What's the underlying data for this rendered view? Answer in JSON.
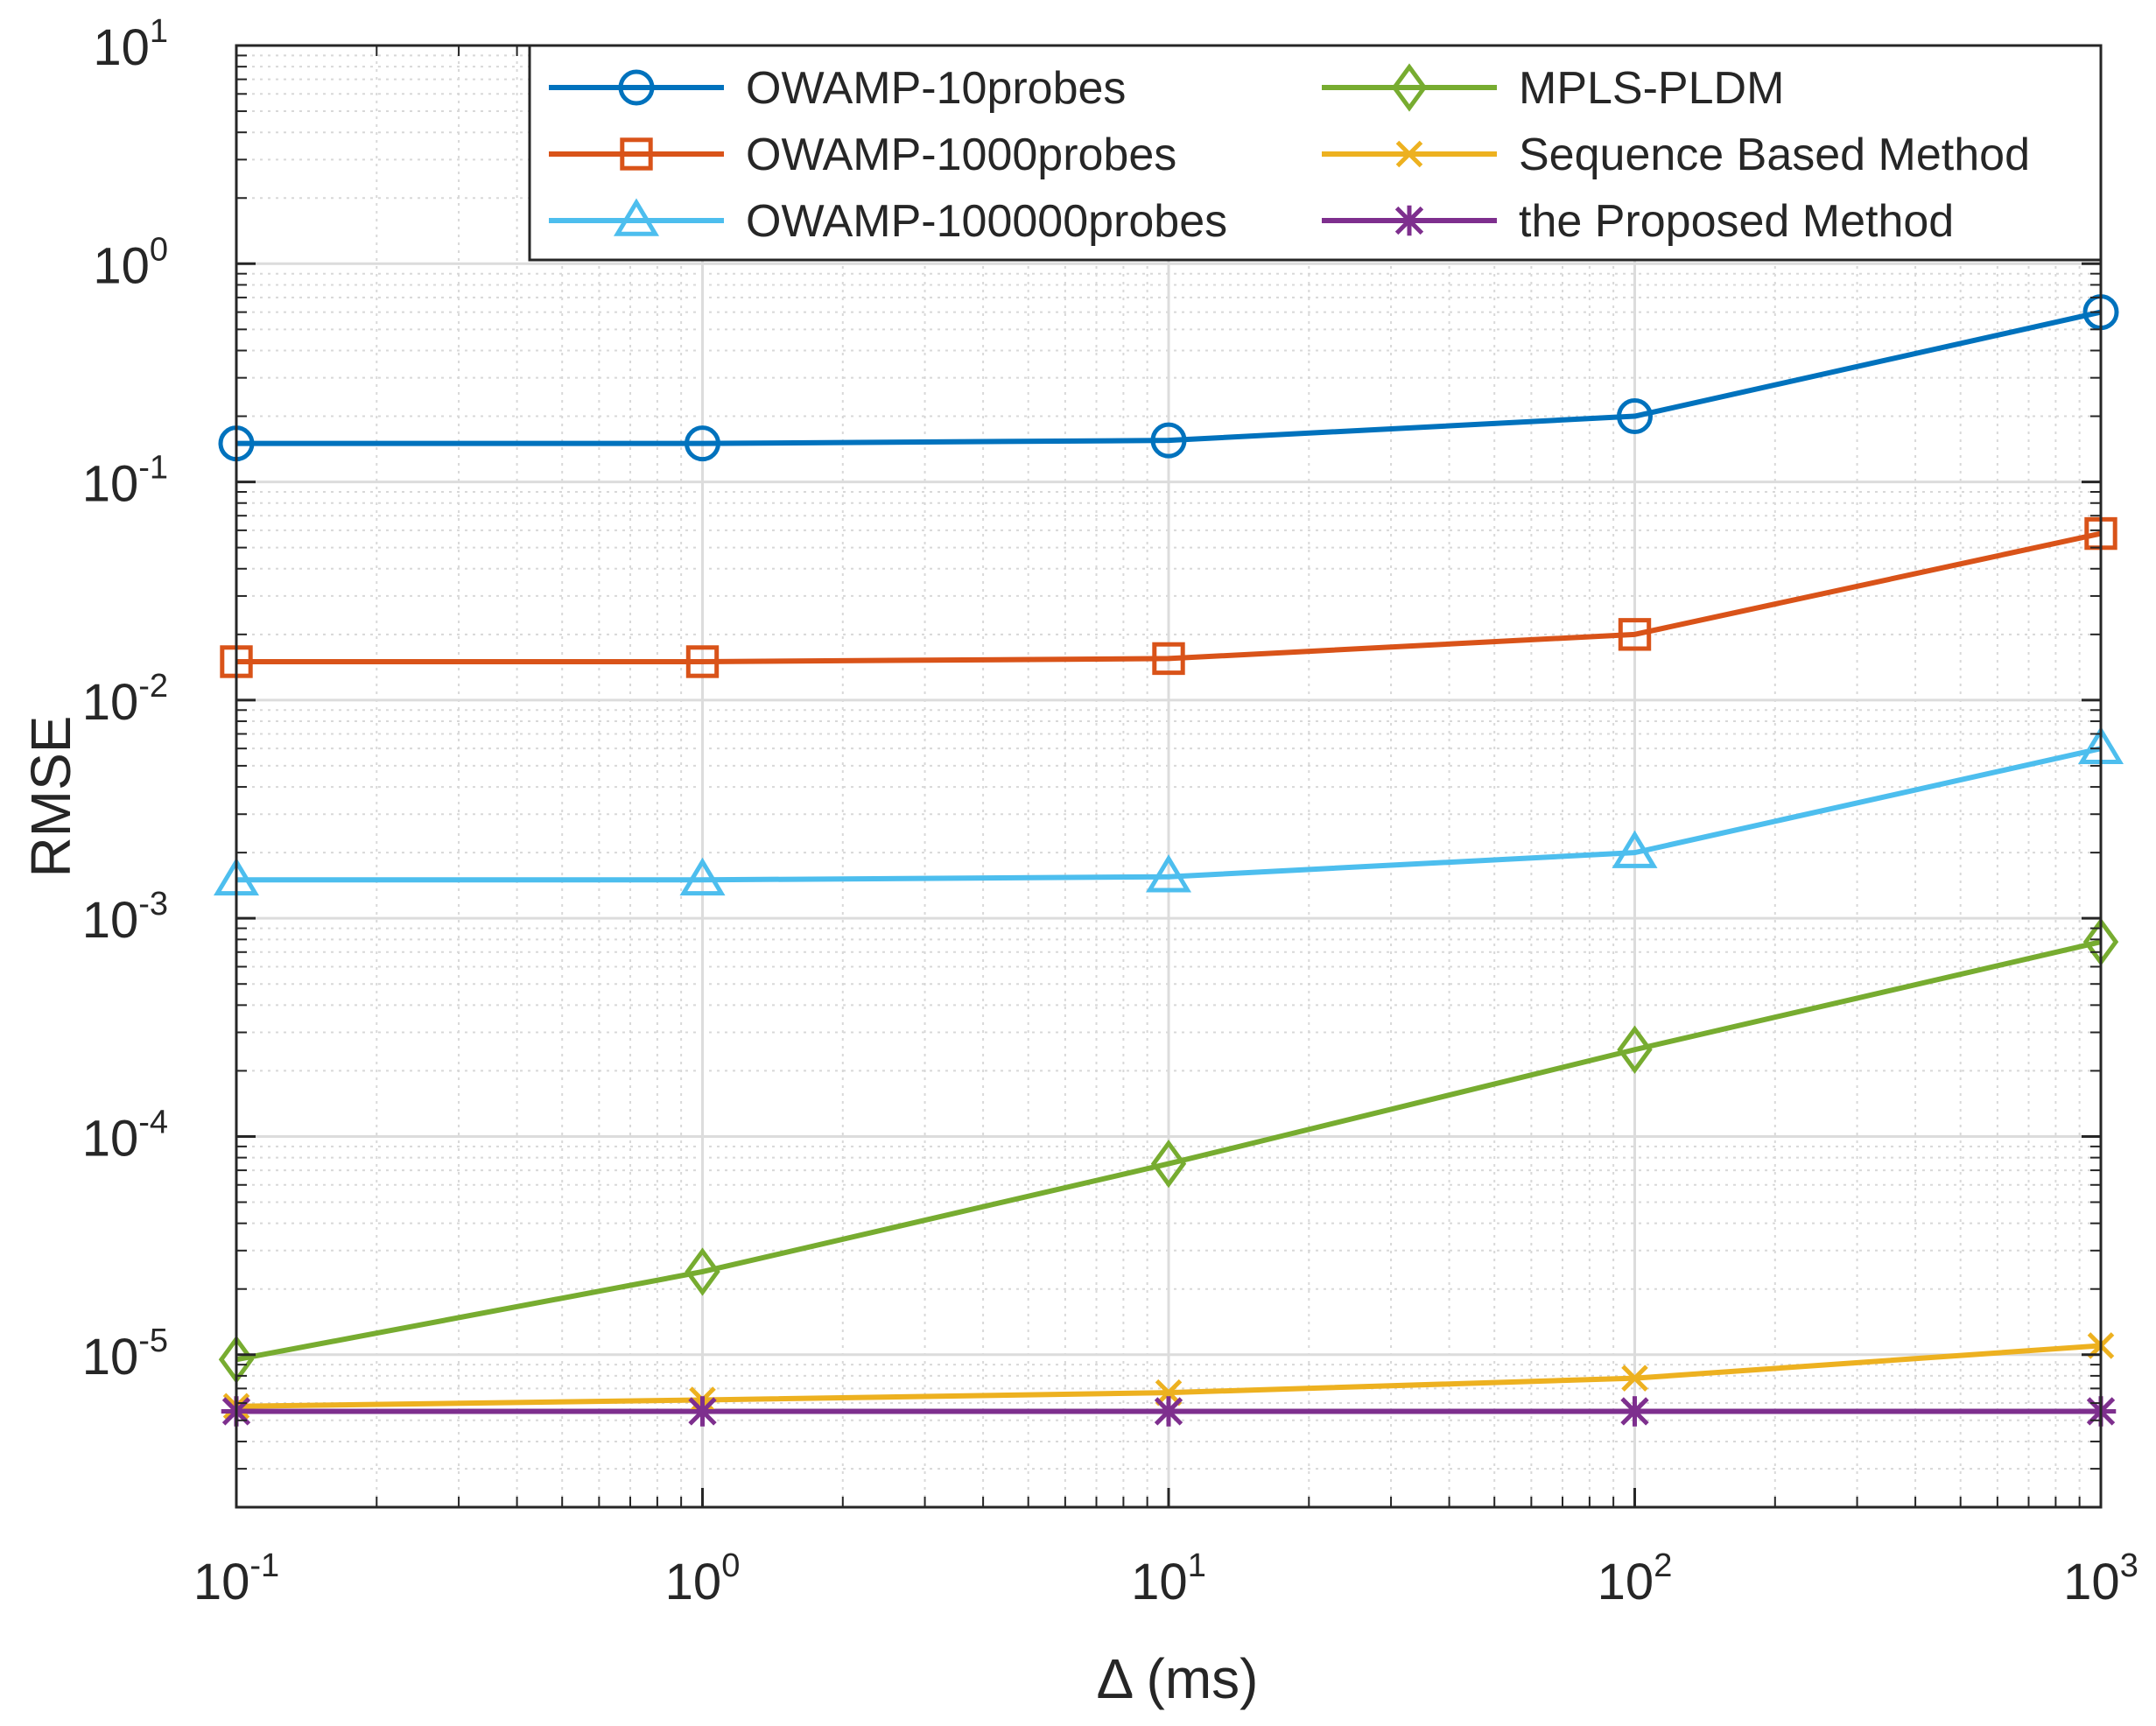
{
  "chart_data": {
    "type": "line",
    "title": "",
    "xlabel": "Δ (ms)",
    "ylabel": "RMSE",
    "x_scale": "log",
    "y_scale": "log",
    "xlim": [
      0.1,
      1000
    ],
    "ylim": [
      2e-06,
      10
    ],
    "grid": true,
    "legend_position": "top-right",
    "x_ticks": [
      {
        "base": "10",
        "exp": "-1",
        "value": 0.1
      },
      {
        "base": "10",
        "exp": "0",
        "value": 1
      },
      {
        "base": "10",
        "exp": "1",
        "value": 10
      },
      {
        "base": "10",
        "exp": "2",
        "value": 100
      },
      {
        "base": "10",
        "exp": "3",
        "value": 1000
      }
    ],
    "y_ticks": [
      {
        "base": "10",
        "exp": "-5",
        "value": 1e-05
      },
      {
        "base": "10",
        "exp": "-4",
        "value": 0.0001
      },
      {
        "base": "10",
        "exp": "-3",
        "value": 0.001
      },
      {
        "base": "10",
        "exp": "-2",
        "value": 0.01
      },
      {
        "base": "10",
        "exp": "-1",
        "value": 0.1
      },
      {
        "base": "10",
        "exp": "0",
        "value": 1
      },
      {
        "base": "10",
        "exp": "1",
        "value": 10
      }
    ],
    "x": [
      0.1,
      1,
      10,
      100,
      1000
    ],
    "series": [
      {
        "name": "OWAMP-10probes",
        "color": "#0072BD",
        "marker": "circle",
        "values": [
          0.15,
          0.15,
          0.155,
          0.2,
          0.6
        ]
      },
      {
        "name": "OWAMP-1000probes",
        "color": "#D95319",
        "marker": "square",
        "values": [
          0.015,
          0.015,
          0.0155,
          0.02,
          0.058
        ]
      },
      {
        "name": "OWAMP-100000probes",
        "color": "#4DBEEE",
        "marker": "triangle",
        "values": [
          0.0015,
          0.0015,
          0.00155,
          0.002,
          0.006
        ]
      },
      {
        "name": "MPLS-PLDM",
        "color": "#77AC30",
        "marker": "diamond",
        "values": [
          9.5e-06,
          2.4e-05,
          7.5e-05,
          0.00025,
          0.00078
        ]
      },
      {
        "name": "Sequence Based Method",
        "color": "#EDB120",
        "marker": "x",
        "values": [
          5.8e-06,
          6.2e-06,
          6.7e-06,
          7.8e-06,
          1.1e-05
        ]
      },
      {
        "name": "the Proposed Method",
        "color": "#7E2F8E",
        "marker": "star",
        "values": [
          5.5e-06,
          5.5e-06,
          5.5e-06,
          5.5e-06,
          5.5e-06
        ]
      }
    ]
  }
}
